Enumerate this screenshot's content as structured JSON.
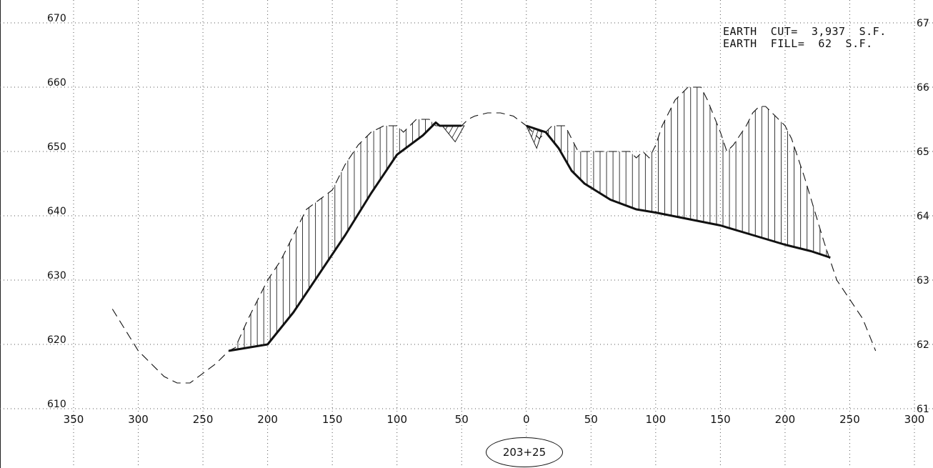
{
  "annotation": {
    "cut_line": "EARTH  CUT=  3,937  S.F.",
    "fill_line": "EARTH  FILL=  62  S.F."
  },
  "station_label": "203+25",
  "chart_data": {
    "type": "line",
    "title": "",
    "xlabel": "",
    "ylabel": "",
    "xlim": [
      -350,
      300
    ],
    "ylim": [
      610,
      670
    ],
    "grid": true,
    "x_ticks": [
      {
        "value": -350,
        "label": "350"
      },
      {
        "value": -300,
        "label": "300"
      },
      {
        "value": -250,
        "label": "250"
      },
      {
        "value": -200,
        "label": "200"
      },
      {
        "value": -150,
        "label": "150"
      },
      {
        "value": -100,
        "label": "100"
      },
      {
        "value": -50,
        "label": "50"
      },
      {
        "value": 0,
        "label": "0"
      },
      {
        "value": 50,
        "label": "50"
      },
      {
        "value": 100,
        "label": "100"
      },
      {
        "value": 150,
        "label": "150"
      },
      {
        "value": 200,
        "label": "200"
      },
      {
        "value": 250,
        "label": "250"
      },
      {
        "value": 300,
        "label": "300"
      }
    ],
    "y_ticks": [
      610,
      620,
      630,
      640,
      650,
      660,
      670
    ],
    "y_tick_labels_left": [
      "610",
      "620",
      "630",
      "640",
      "650",
      "660",
      "670"
    ],
    "y_tick_labels_right": [
      "61",
      "62",
      "63",
      "64",
      "65",
      "66",
      "67"
    ],
    "series": [
      {
        "style": "dashed",
        "x": [
          -320,
          -300,
          -280,
          -270,
          -260,
          -240,
          -230,
          -225,
          -215,
          -205,
          -200,
          -190,
          -180,
          -170,
          -160,
          -150,
          -140,
          -130,
          -120,
          -110,
          -100,
          -95,
          -90,
          -85,
          -80,
          -75,
          -70,
          -60,
          -50,
          -45,
          -40,
          -30,
          -20,
          -10,
          0
        ],
        "y": [
          625.5,
          619,
          615,
          614,
          614,
          617,
          619,
          619.5,
          624,
          628,
          630,
          633,
          637,
          641,
          642.5,
          644,
          648,
          651,
          653,
          654,
          654,
          653,
          654,
          655,
          655,
          655,
          654,
          654,
          654,
          655,
          655.5,
          656,
          656,
          655.5,
          654
        ]
      },
      {
        "style": "solid",
        "x": [
          -230,
          -200,
          -180,
          -160,
          -140,
          -120,
          -100,
          -80,
          -70,
          -67,
          -50
        ],
        "y": [
          619,
          620,
          625,
          631,
          637,
          643.5,
          649.5,
          652.5,
          654.5,
          654,
          654
        ]
      },
      {
        "style": "dashed",
        "x": [
          0,
          10,
          15,
          20,
          30,
          40,
          50,
          60,
          70,
          80,
          85,
          90,
          95,
          100,
          105,
          110,
          115,
          125,
          135,
          140,
          150,
          155,
          160,
          170,
          175,
          180,
          185,
          195,
          200,
          205,
          215,
          230,
          240,
          260,
          270
        ],
        "y": [
          654,
          652,
          653,
          654,
          654,
          650,
          650,
          650,
          650,
          650,
          649,
          650,
          649,
          651,
          654,
          656,
          658,
          660,
          660,
          658,
          653,
          650,
          651,
          654,
          656,
          657,
          657,
          655,
          654,
          652,
          646,
          636,
          630,
          624,
          619
        ]
      },
      {
        "style": "solid",
        "x": [
          0,
          15,
          25,
          35,
          45,
          65,
          85,
          100,
          125,
          150,
          175,
          200,
          220,
          235
        ],
        "y": [
          654,
          653,
          650.5,
          647,
          645,
          642.5,
          641,
          640.5,
          639.5,
          638.5,
          637,
          635.5,
          634.5,
          633.5
        ]
      }
    ],
    "cut_regions": [
      {
        "x_range": [
          -230,
          -70
        ],
        "top_series": 0,
        "bottom_series": 1
      },
      {
        "x_range": [
          15,
          235
        ],
        "top_series": 2,
        "bottom_series": 3
      }
    ],
    "fill_regions": [
      {
        "points": [
          [
            -65,
            654
          ],
          [
            -48,
            654
          ],
          [
            -55,
            651.5
          ]
        ]
      },
      {
        "points": [
          [
            0,
            654
          ],
          [
            12,
            653
          ],
          [
            8,
            650.5
          ]
        ]
      }
    ]
  }
}
